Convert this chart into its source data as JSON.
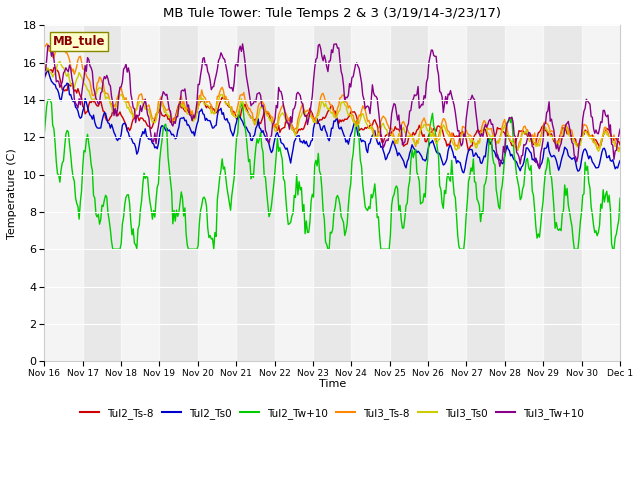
{
  "title": "MB Tule Tower: Tule Temps 2 & 3 (3/19/14-3/23/17)",
  "ylabel": "Temperature (C)",
  "xlabel": "Time",
  "ylim": [
    0,
    18
  ],
  "yticks": [
    0,
    2,
    4,
    6,
    8,
    10,
    12,
    14,
    16,
    18
  ],
  "fig_bg": "#ffffff",
  "plot_bg": "#e8e8e8",
  "series": {
    "Tul2_Ts-8": {
      "color": "#cc0000",
      "lw": 1.0
    },
    "Tul2_Ts0": {
      "color": "#0000cc",
      "lw": 1.0
    },
    "Tul2_Tw+10": {
      "color": "#00cc00",
      "lw": 1.0
    },
    "Tul3_Ts-8": {
      "color": "#ff8800",
      "lw": 1.0
    },
    "Tul3_Ts0": {
      "color": "#cccc00",
      "lw": 1.0
    },
    "Tul3_Tw+10": {
      "color": "#880088",
      "lw": 1.0
    }
  },
  "legend_label": "MB_tule",
  "legend_box_color": "#ffffcc",
  "legend_text_color": "#880000",
  "legend_border_color": "#888800",
  "xtick_labels": [
    "Nov 16",
    "Nov 17",
    "Nov 18",
    "Nov 19",
    "Nov 20",
    "Nov 21",
    "Nov 22",
    "Nov 23",
    "Nov 24",
    "Nov 25",
    "Nov 26",
    "Nov 27",
    "Nov 28",
    "Nov 29",
    "Nov 30",
    "Dec 1"
  ],
  "xtick_pos": [
    16,
    17,
    18,
    19,
    20,
    21,
    22,
    23,
    24,
    25,
    26,
    27,
    28,
    29,
    30,
    31
  ],
  "x_start": 16,
  "x_end": 31,
  "n_points": 480
}
